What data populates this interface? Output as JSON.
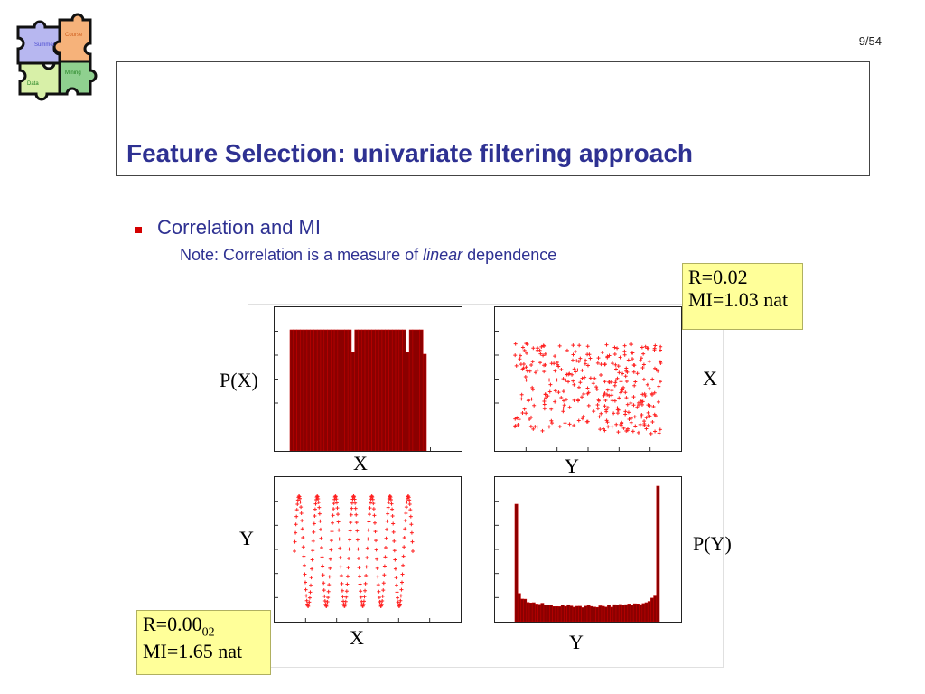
{
  "page_number": "9/54",
  "title": "Feature Selection: univariate filtering approach",
  "bullet": "Correlation and MI",
  "note": {
    "prefix": "Note:  Correlation is a measure of ",
    "emphasis": "linear",
    "suffix": " dependence"
  },
  "logo": {
    "pieces": [
      "Summer",
      "Course",
      "Mining",
      "Data"
    ],
    "colors": [
      "#b7b7f0",
      "#f6b27a",
      "#8fd08f",
      "#d8f0a8"
    ]
  },
  "figure": {
    "labels": {
      "px": "P(X)",
      "x_right": "X",
      "tl_x": "X",
      "tr_y": "Y",
      "bl_y": "Y",
      "py": "P(Y)",
      "bl_x": "X",
      "br_y": "Y"
    }
  },
  "box_top": {
    "r": "R=0.02",
    "mi": "MI=1.03 nat"
  },
  "box_bottom": {
    "r_main": "R=0.00",
    "r_sub": "02",
    "mi": "MI=1.65 nat"
  },
  "colors": {
    "title": "#2e3192",
    "bar": "#8b0000",
    "marker": "#ff2020",
    "highlight": "#ffff99"
  }
}
